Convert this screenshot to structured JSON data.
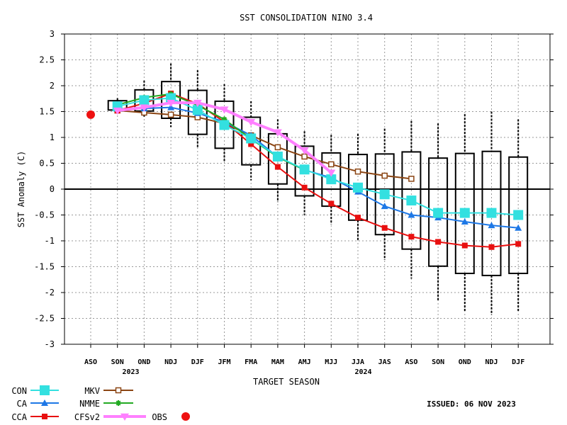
{
  "chart_data": {
    "type": "line",
    "title": "SST CONSOLIDATION NINO 3.4",
    "xlabel": "TARGET SEASON",
    "ylabel": "SST Anomaly (C)",
    "ylim": [
      -3,
      3
    ],
    "yticks": [
      "3",
      "2.5",
      "2",
      "1.5",
      "1",
      "0.5",
      "0",
      "-0.5",
      "-1",
      "-1.5",
      "-2",
      "-2.5",
      "-3"
    ],
    "categories": [
      "ASO",
      "SON",
      "OND",
      "NDJ",
      "DJF",
      "JFM",
      "FMA",
      "MAM",
      "AMJ",
      "MJJ",
      "JJA",
      "JAS",
      "ASO",
      "SON",
      "OND",
      "NDJ",
      "DJF"
    ],
    "year_labels": [
      {
        "index": 1.5,
        "label": "2023"
      },
      {
        "index": 10.2,
        "label": "2024"
      }
    ],
    "issued": "ISSUED: 06 NOV 2023",
    "grid": true,
    "box_whiskers": [
      {
        "x": 1,
        "q1": 1.53,
        "q3": 1.71,
        "min": 1.51,
        "max": 1.76
      },
      {
        "x": 2,
        "q1": 1.51,
        "q3": 1.92,
        "min": 1.4,
        "max": 2.1
      },
      {
        "x": 3,
        "q1": 1.37,
        "q3": 2.08,
        "min": 1.2,
        "max": 2.43
      },
      {
        "x": 4,
        "q1": 1.06,
        "q3": 1.91,
        "min": 0.8,
        "max": 2.3
      },
      {
        "x": 5,
        "q1": 0.79,
        "q3": 1.7,
        "min": 0.52,
        "max": 2.03
      },
      {
        "x": 6,
        "q1": 0.47,
        "q3": 1.39,
        "min": 0.17,
        "max": 1.7
      },
      {
        "x": 7,
        "q1": 0.1,
        "q3": 1.07,
        "min": -0.25,
        "max": 1.35
      },
      {
        "x": 8,
        "q1": -0.13,
        "q3": 0.83,
        "min": -0.5,
        "max": 1.12
      },
      {
        "x": 9,
        "q1": -0.33,
        "q3": 0.7,
        "min": -0.68,
        "max": 1.05
      },
      {
        "x": 10,
        "q1": -0.6,
        "q3": 0.67,
        "min": -1.0,
        "max": 1.07
      },
      {
        "x": 11,
        "q1": -0.88,
        "q3": 0.68,
        "min": -1.37,
        "max": 1.17
      },
      {
        "x": 12,
        "q1": -1.16,
        "q3": 0.72,
        "min": -1.73,
        "max": 1.32
      },
      {
        "x": 13,
        "q1": -1.49,
        "q3": 0.6,
        "min": -2.17,
        "max": 1.27
      },
      {
        "x": 14,
        "q1": -1.63,
        "q3": 0.69,
        "min": -2.37,
        "max": 1.45
      },
      {
        "x": 15,
        "q1": -1.67,
        "q3": 0.73,
        "min": -2.43,
        "max": 1.5
      },
      {
        "x": 16,
        "q1": -1.63,
        "q3": 0.62,
        "min": -2.37,
        "max": 1.35
      }
    ],
    "series": [
      {
        "name": "CON",
        "color": "#33e0e0",
        "marker": "square-large",
        "line_width": 2,
        "x": [
          1,
          2,
          3,
          4,
          5,
          6,
          7,
          8,
          9,
          10,
          11,
          12,
          13,
          14,
          15,
          16
        ],
        "values": [
          1.6,
          1.72,
          1.76,
          1.53,
          1.24,
          0.98,
          0.63,
          0.38,
          0.19,
          0.03,
          -0.1,
          -0.22,
          -0.46,
          -0.46,
          -0.46,
          -0.5
        ]
      },
      {
        "name": "CA",
        "color": "#1e78e6",
        "marker": "triangle",
        "line_width": 2,
        "x": [
          1,
          2,
          3,
          4,
          5,
          6,
          7,
          8,
          9,
          10,
          11,
          12,
          13,
          14,
          15,
          16
        ],
        "values": [
          1.55,
          1.56,
          1.58,
          1.47,
          1.3,
          1.04,
          0.62,
          0.37,
          0.22,
          -0.05,
          -0.33,
          -0.5,
          -0.55,
          -0.63,
          -0.7,
          -0.75
        ]
      },
      {
        "name": "CCA",
        "color": "#e81010",
        "marker": "square-small",
        "line_width": 2,
        "x": [
          1,
          2,
          3,
          4,
          5,
          6,
          7,
          8,
          9,
          10,
          11,
          12,
          13,
          14,
          15,
          16
        ],
        "values": [
          1.52,
          1.66,
          1.85,
          1.65,
          1.3,
          0.87,
          0.43,
          0.03,
          -0.28,
          -0.55,
          -0.75,
          -0.92,
          -1.02,
          -1.09,
          -1.12,
          -1.06
        ]
      },
      {
        "name": "MKV",
        "color": "#8b4513",
        "marker": "square-open",
        "line_width": 2,
        "x": [
          1,
          2,
          3,
          4,
          5,
          6,
          7,
          8,
          9,
          10,
          11,
          12
        ],
        "values": [
          1.52,
          1.48,
          1.44,
          1.39,
          1.27,
          1.04,
          0.81,
          0.63,
          0.48,
          0.34,
          0.26,
          0.2
        ]
      },
      {
        "name": "NMME",
        "color": "#22aa22",
        "marker": "asterisk",
        "line_width": 2,
        "x": [
          1,
          2,
          3,
          4,
          5,
          6,
          7,
          8
        ],
        "values": [
          1.63,
          1.77,
          1.84,
          1.62,
          1.35,
          0.97,
          0.62,
          0.37
        ]
      },
      {
        "name": "CFSv2",
        "color": "#ff80ff",
        "marker": "triangle-down",
        "line_width": 4,
        "x": [
          1,
          2,
          3,
          4,
          5,
          6,
          7,
          8,
          9
        ],
        "values": [
          1.52,
          1.58,
          1.67,
          1.67,
          1.54,
          1.3,
          1.1,
          0.75,
          0.32
        ]
      },
      {
        "name": "OBS",
        "color": "#ee1111",
        "marker": "circle",
        "x": [
          0
        ],
        "values": [
          1.44
        ]
      }
    ]
  }
}
